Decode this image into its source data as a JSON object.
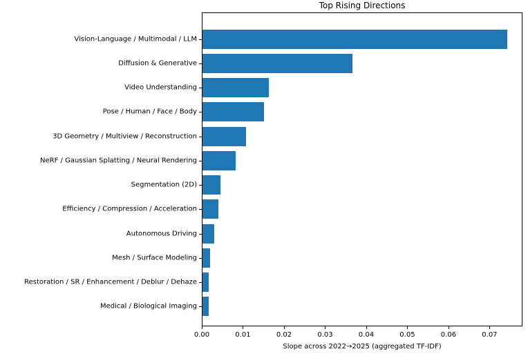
{
  "chart_data": {
    "type": "bar",
    "orientation": "horizontal",
    "title": "Top Rising Directions",
    "xlabel": "Slope across 2022→2025 (aggregated TF-IDF)",
    "ylabel": "",
    "categories": [
      "Vision-Language / Multimodal / LLM",
      "Diffusion & Generative",
      "Video Understanding",
      "Pose / Human / Face / Body",
      "3D Geometry / Multiview / Reconstruction",
      "NeRF / Gaussian Splatting / Neural Rendering",
      "Segmentation (2D)",
      "Efficiency / Compression / Acceleration",
      "Autonomous Driving",
      "Mesh / Surface Modeling",
      "Restoration / SR / Enhancement / Deblur / Dehaze",
      "Medical / Biological Imaging"
    ],
    "values": [
      0.0744,
      0.0366,
      0.0162,
      0.015,
      0.0106,
      0.0081,
      0.0044,
      0.0039,
      0.0029,
      0.0019,
      0.0016,
      0.0015
    ],
    "xlim": [
      0,
      0.078
    ],
    "xticks": [
      0.0,
      0.01,
      0.02,
      0.03,
      0.04,
      0.05,
      0.06,
      0.07
    ],
    "xtick_labels": [
      "0.00",
      "0.01",
      "0.02",
      "0.03",
      "0.04",
      "0.05",
      "0.06",
      "0.07"
    ],
    "grid": false,
    "legend": "none",
    "bar_color": "#1f77b4",
    "background_color": "#ffffff"
  }
}
